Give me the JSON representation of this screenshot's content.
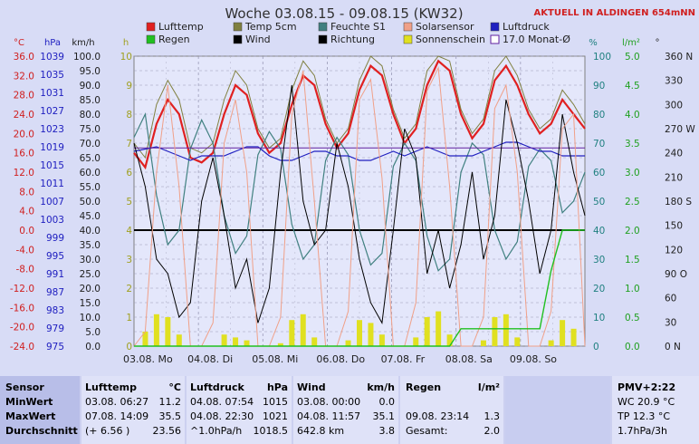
{
  "header": {
    "title": "Woche 03.08.15 - 09.08.15 (KW32)",
    "live_label": "AKTUELL IN ALDINGEN 654mNN"
  },
  "legend": [
    {
      "label": "Lufttemp",
      "color": "#e02020",
      "kind": "solid"
    },
    {
      "label": "Temp 5cm",
      "color": "#808040",
      "kind": "solid"
    },
    {
      "label": "Feuchte S1",
      "color": "#408080",
      "kind": "solid"
    },
    {
      "label": "Solarsensor",
      "color": "#f0a088",
      "kind": "solid"
    },
    {
      "label": "Luftdruck",
      "color": "#2020c0",
      "kind": "solid"
    },
    {
      "label": "Regen",
      "color": "#20c020",
      "kind": "solid"
    },
    {
      "label": "Wind",
      "color": "#000000",
      "kind": "solid"
    },
    {
      "label": "Richtung",
      "color": "#000000",
      "kind": "solid"
    },
    {
      "label": "Sonnenschein",
      "color": "#e0e020",
      "kind": "solid"
    },
    {
      "label": "17.0 Monat-Ø",
      "color": "#6020a0",
      "kind": "outline"
    }
  ],
  "chart_data": {
    "type": "line",
    "x_ticks": [
      "03.08. Mo",
      "04.08. Di",
      "05.08. Mi",
      "06.08. Do",
      "07.08. Fr",
      "08.08. Sa",
      "09.08. So"
    ],
    "axes": {
      "temp_c": {
        "unit": "°C",
        "min": -24,
        "max": 36,
        "ticks": [
          "36.0",
          "32.0",
          "28.0",
          "24.0",
          "20.0",
          "16.0",
          "12.0",
          "8.0",
          "4.0",
          "0.0",
          "-4.0",
          "-8.0",
          "-12.0",
          "-16.0",
          "-20.0",
          "-24.0"
        ]
      },
      "pressure_hpa": {
        "unit": "hPa",
        "min": 975,
        "max": 1039,
        "ticks": [
          "1039",
          "1035",
          "1031",
          "1027",
          "1023",
          "1019",
          "1015",
          "1011",
          "1007",
          "1003",
          "999",
          "995",
          "991",
          "987",
          "983",
          "979",
          "975"
        ]
      },
      "wind_kmh": {
        "unit": "km/h",
        "min": 0,
        "max": 100,
        "ticks": [
          "100.0",
          "95.0",
          "90.0",
          "85.0",
          "80.0",
          "75.0",
          "70.0",
          "65.0",
          "60.0",
          "55.0",
          "50.0",
          "45.0",
          "40.0",
          "35.0",
          "30.0",
          "25.0",
          "20.0",
          "15.0",
          "10.0",
          "5.0",
          "0.0"
        ]
      },
      "sun_h": {
        "unit": "h",
        "min": 0,
        "max": 10,
        "ticks": [
          "10",
          "9",
          "8",
          "7",
          "6",
          "5",
          "4",
          "3",
          "2",
          "1",
          "0"
        ]
      },
      "humidity_pct": {
        "unit": "%",
        "min": 0,
        "max": 100,
        "ticks": [
          "100",
          "90",
          "80",
          "70",
          "60",
          "50",
          "40",
          "30",
          "20",
          "10",
          "0"
        ]
      },
      "rain_lm2": {
        "unit": "l/m²",
        "min": 0,
        "max": 5,
        "ticks": [
          "5.0",
          "4.5",
          "4.0",
          "3.5",
          "3.0",
          "2.5",
          "2.0",
          "1.5",
          "1.0",
          "0.5",
          "0.0"
        ]
      },
      "direction_deg": {
        "unit": "°",
        "ticks": [
          "360 N",
          "330",
          "300",
          "270 W",
          "240",
          "210",
          "180 S",
          "150",
          "120",
          "90 O",
          "60",
          "30",
          "0 N"
        ]
      }
    },
    "series": [
      {
        "name": "Lufttemp",
        "axis": "temp_c",
        "values": [
          16,
          13,
          22,
          27,
          24,
          15,
          14,
          16,
          24,
          30,
          28,
          20,
          16,
          18,
          26,
          32,
          30,
          22,
          17,
          20,
          29,
          34,
          32,
          24,
          18,
          21,
          30,
          35,
          33,
          24,
          19,
          22,
          31,
          34,
          30,
          24,
          20,
          22,
          27,
          24,
          21
        ]
      },
      {
        "name": "Temp 5cm",
        "axis": "temp_c",
        "values": [
          18,
          15,
          26,
          31,
          27,
          17,
          16,
          18,
          27,
          33,
          30,
          21,
          17,
          19,
          29,
          35,
          32,
          23,
          18,
          21,
          31,
          36,
          34,
          25,
          19,
          22,
          33,
          36,
          35,
          25,
          20,
          23,
          33,
          36,
          32,
          25,
          21,
          23,
          29,
          26,
          22
        ]
      },
      {
        "name": "Feuchte S1",
        "axis": "humidity_pct",
        "values": [
          72,
          80,
          52,
          35,
          40,
          68,
          78,
          70,
          45,
          32,
          38,
          66,
          74,
          68,
          42,
          30,
          35,
          64,
          72,
          66,
          40,
          28,
          32,
          62,
          70,
          64,
          38,
          26,
          30,
          60,
          70,
          66,
          40,
          30,
          36,
          62,
          68,
          64,
          46,
          50,
          60
        ]
      },
      {
        "name": "Luftdruck",
        "axis": "pressure_hpa",
        "values": [
          1018,
          1018.5,
          1019,
          1018,
          1017,
          1016,
          1017,
          1017,
          1017,
          1018,
          1019,
          1019,
          1017,
          1016,
          1016,
          1017,
          1018,
          1018,
          1017,
          1017,
          1016,
          1016,
          1017,
          1018,
          1017,
          1018,
          1019,
          1018,
          1017,
          1017,
          1017,
          1018,
          1019,
          1020,
          1020,
          1019,
          1018,
          1018,
          1017,
          1017,
          1017
        ]
      },
      {
        "name": "Monat-Ø",
        "axis": "temp_c",
        "values": [
          17,
          17
        ]
      },
      {
        "name": "Wind",
        "axis": "wind_kmh",
        "values": [
          70,
          55,
          30,
          25,
          10,
          15,
          50,
          65,
          45,
          20,
          30,
          8,
          20,
          60,
          90,
          50,
          35,
          40,
          70,
          55,
          30,
          15,
          8,
          40,
          75,
          65,
          25,
          40,
          20,
          35,
          60,
          30,
          45,
          85,
          70,
          50,
          25,
          40,
          80,
          60,
          45
        ]
      },
      {
        "name": "Solarsensor",
        "axis": "humidity_pct",
        "values": [
          0,
          5,
          60,
          90,
          55,
          0,
          0,
          8,
          70,
          85,
          60,
          0,
          0,
          10,
          80,
          95,
          50,
          0,
          0,
          12,
          85,
          92,
          58,
          0,
          0,
          15,
          88,
          96,
          55,
          0,
          0,
          10,
          82,
          90,
          60,
          0,
          0,
          12,
          75,
          80,
          0
        ]
      },
      {
        "name": "Sonnenschein",
        "axis": "sun_h",
        "values": [
          0,
          0.5,
          1.1,
          1.0,
          0.4,
          0,
          0,
          0,
          0.4,
          0.3,
          0.2,
          0,
          0,
          0.1,
          0.9,
          1.1,
          0.3,
          0,
          0,
          0.2,
          0.9,
          0.8,
          0.4,
          0,
          0,
          0.3,
          1.0,
          1.2,
          0.4,
          0,
          0,
          0.2,
          1.0,
          1.1,
          0.3,
          0,
          0,
          0.2,
          0.9,
          0.6,
          0
        ]
      },
      {
        "name": "Regen",
        "axis": "rain_lm2",
        "values": [
          0,
          0,
          0,
          0,
          0,
          0,
          0,
          0,
          0,
          0,
          0,
          0,
          0,
          0,
          0,
          0,
          0,
          0,
          0,
          0,
          0,
          0,
          0,
          0,
          0,
          0,
          0,
          0,
          0,
          0.3,
          0.3,
          0.3,
          0.3,
          0.3,
          0.3,
          0.3,
          0.3,
          1.3,
          2.0,
          2.0,
          2.0
        ]
      }
    ]
  },
  "table": {
    "row_labels": [
      "Sensor",
      "MinWert",
      "MaxWert",
      "Durchschnitt"
    ],
    "lufttemp": {
      "title": "Lufttemp",
      "unit": "°C",
      "rows": [
        [
          "03.08.  06:27",
          "11.2"
        ],
        [
          "07.08.  14:09",
          "35.5"
        ],
        [
          "(+ 6.56 )",
          "23.56"
        ]
      ]
    },
    "luftdruck": {
      "title": "Luftdruck",
      "unit": "hPa",
      "rows": [
        [
          "04.08.  07:54",
          "1015"
        ],
        [
          "04.08.  22:30",
          "1021"
        ],
        [
          "^1.0hPa/h",
          "1018.5"
        ]
      ]
    },
    "wind": {
      "title": "Wind",
      "unit": "km/h",
      "rows": [
        [
          "03.08.  00:00",
          "0.0"
        ],
        [
          "04.08.  11:57",
          "35.1"
        ],
        [
          "642.8 km",
          "3.8"
        ]
      ]
    },
    "regen": {
      "title": "Regen",
      "unit": "l/m²",
      "rows": [
        [
          "",
          ""
        ],
        [
          "09.08.  23:14",
          "1.3"
        ],
        [
          "Gesamt:",
          "2.0"
        ]
      ]
    },
    "pmv": {
      "title": "PMV+2:22",
      "rows": [
        "WC 20.9 °C",
        "TP 12.3 °C",
        "1.7hPa/3h"
      ]
    }
  }
}
